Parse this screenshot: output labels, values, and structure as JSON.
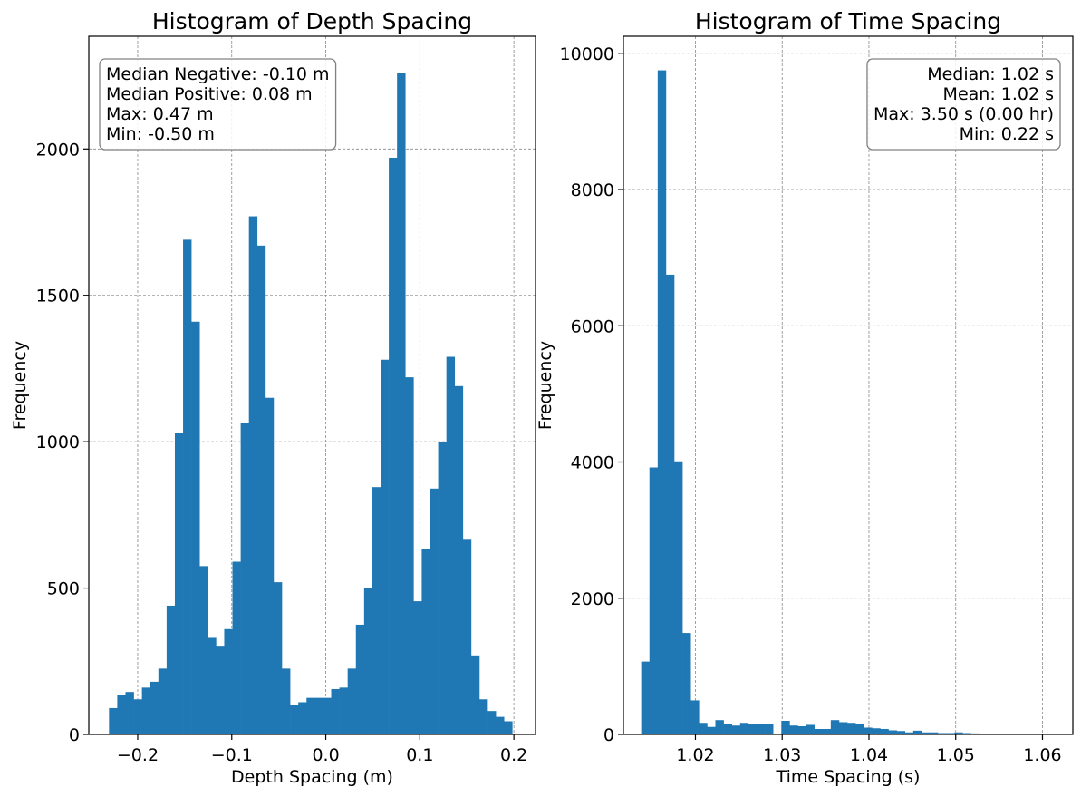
{
  "chart_data": [
    {
      "type": "bar",
      "title": "Histogram of Depth Spacing",
      "xlabel": "Depth Spacing (m)",
      "ylabel": "Frequency",
      "xlim": [
        -0.252,
        0.223
      ],
      "ylim": [
        0,
        2385
      ],
      "xticks": [
        -0.2,
        -0.1,
        0.0,
        0.1,
        0.2
      ],
      "xtick_labels": [
        "−0.2",
        "−0.1",
        "0.0",
        "0.1",
        "0.2"
      ],
      "yticks": [
        0,
        500,
        1000,
        1500,
        2000
      ],
      "ytick_labels": [
        "0",
        "500",
        "1000",
        "1500",
        "2000"
      ],
      "grid": true,
      "bar_color": "#1f77b4",
      "bins": {
        "start": -0.2305,
        "width": 0.00875,
        "counts": [
          90,
          135,
          145,
          120,
          160,
          180,
          225,
          440,
          1030,
          1690,
          1410,
          575,
          330,
          300,
          360,
          590,
          1065,
          1770,
          1670,
          1150,
          520,
          225,
          100,
          110,
          125,
          125,
          125,
          155,
          160,
          225,
          375,
          500,
          845,
          1280,
          1970,
          2260,
          1220,
          455,
          635,
          840,
          1000,
          1290,
          1190,
          665,
          270,
          120,
          80,
          60,
          45
        ]
      },
      "legend": {
        "placement": "upper-left",
        "align": "left",
        "lines": [
          "Median Negative: -0.10 m",
          "Median Positive: 0.08 m",
          "Max: 0.47 m",
          "Min: -0.50 m"
        ]
      }
    },
    {
      "type": "bar",
      "title": "Histogram of Time Spacing",
      "xlabel": "Time Spacing (s)",
      "ylabel": "Frequency",
      "xlim": [
        1.0117,
        1.0635
      ],
      "ylim": [
        0,
        10250
      ],
      "xticks": [
        1.02,
        1.03,
        1.04,
        1.05,
        1.06
      ],
      "xtick_labels": [
        "1.02",
        "1.03",
        "1.04",
        "1.05",
        "1.06"
      ],
      "yticks": [
        0,
        2000,
        4000,
        6000,
        8000,
        10000
      ],
      "ytick_labels": [
        "0",
        "2000",
        "4000",
        "6000",
        "8000",
        "10000"
      ],
      "grid": true,
      "bar_color": "#1f77b4",
      "bins": {
        "start": 1.01375,
        "width": 0.00095,
        "counts": [
          1070,
          3920,
          9750,
          6750,
          4010,
          1490,
          500,
          170,
          110,
          210,
          150,
          130,
          170,
          150,
          160,
          155,
          0,
          200,
          130,
          120,
          140,
          80,
          80,
          210,
          180,
          170,
          155,
          100,
          90,
          80,
          60,
          50,
          30,
          55,
          30,
          30,
          20,
          20,
          30,
          20,
          15,
          10,
          10,
          10,
          8,
          5,
          5,
          5,
          3,
          2
        ]
      },
      "legend": {
        "placement": "upper-right",
        "align": "right",
        "lines": [
          "Median: 1.02 s",
          "Mean: 1.02 s",
          "Max: 3.50 s (0.00 hr)",
          "Min: 0.22 s"
        ]
      }
    }
  ]
}
